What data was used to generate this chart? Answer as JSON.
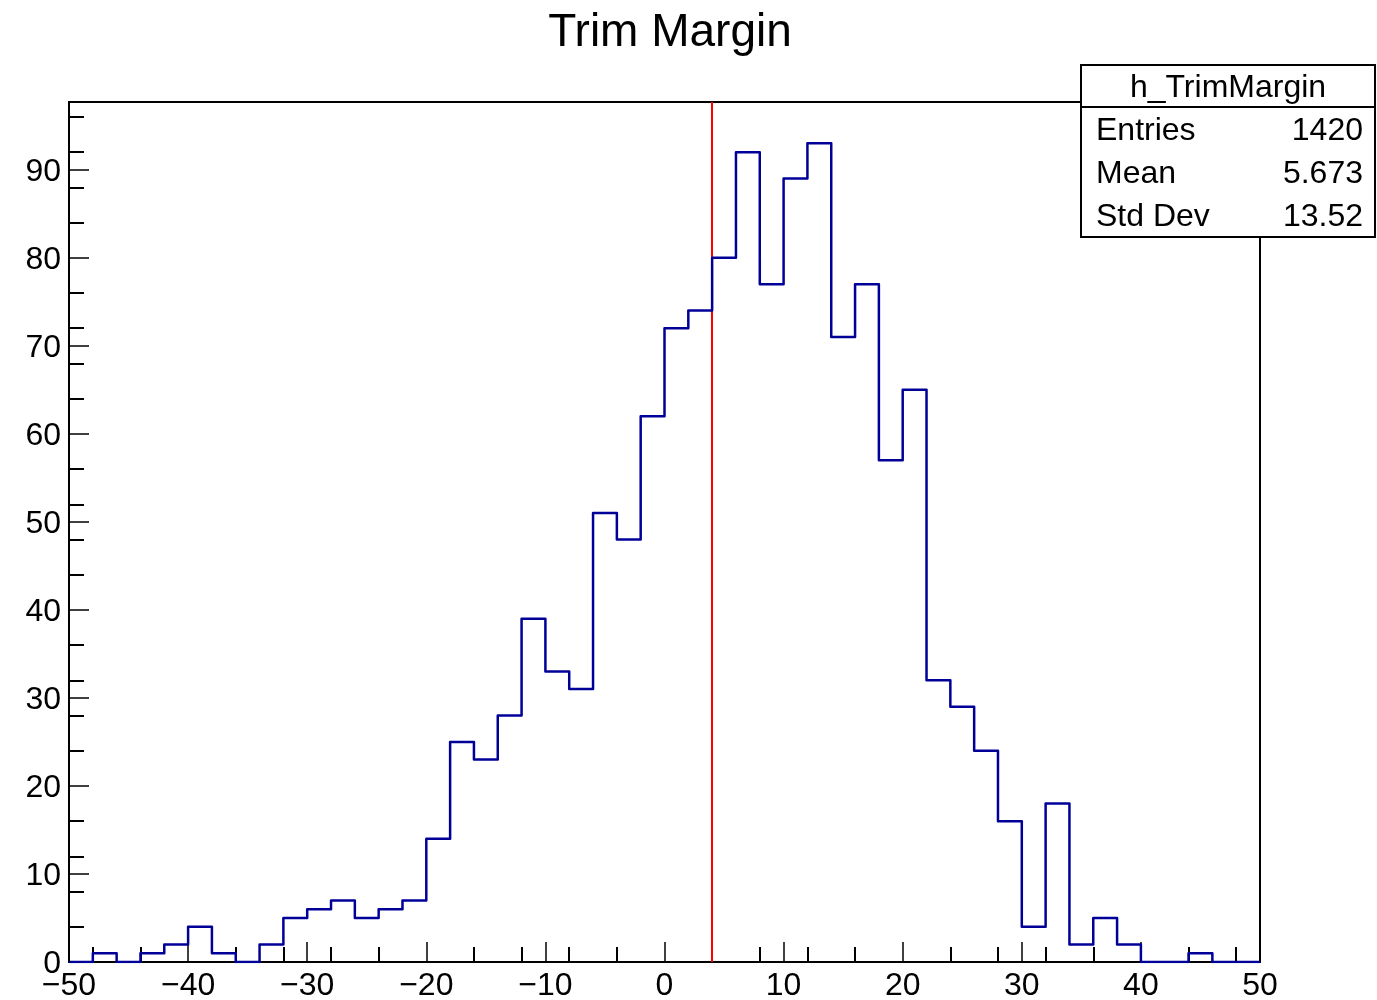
{
  "chart_data": {
    "type": "histogram",
    "title": "Trim Margin",
    "bins": [
      -50,
      -48,
      -46,
      -44,
      -42,
      -40,
      -38,
      -36,
      -34,
      -32,
      -30,
      -28,
      -26,
      -24,
      -22,
      -20,
      -18,
      -16,
      -14,
      -12,
      -10,
      -8,
      -6,
      -4,
      -2,
      0,
      2,
      4,
      6,
      8,
      10,
      12,
      14,
      16,
      18,
      20,
      22,
      24,
      26,
      28,
      30,
      32,
      34,
      36,
      38,
      40,
      42,
      44,
      46,
      48,
      50
    ],
    "values": [
      0,
      1,
      0,
      1,
      2,
      4,
      1,
      0,
      2,
      5,
      6,
      7,
      5,
      6,
      7,
      14,
      25,
      23,
      28,
      39,
      33,
      31,
      51,
      48,
      62,
      72,
      74,
      80,
      92,
      77,
      89,
      93,
      71,
      77,
      57,
      65,
      32,
      29,
      24,
      16,
      4,
      18,
      2,
      5,
      2,
      0,
      0,
      1,
      0,
      0
    ],
    "color": "#000099",
    "xlim": [
      -50,
      50
    ],
    "xticks": [
      -50,
      -40,
      -30,
      -20,
      -10,
      0,
      10,
      20,
      30,
      40,
      50
    ],
    "ylim": [
      0,
      97.7
    ],
    "yticks": [
      0,
      10,
      20,
      30,
      40,
      50,
      60,
      70,
      80,
      90
    ],
    "ref_lines": [
      {
        "axis": "x",
        "value": 4,
        "color": "#ff0000"
      }
    ],
    "annotations": [
      "h_TrimMargin",
      "Entries",
      "1420",
      "Mean",
      "5.673",
      "Std Dev",
      "13.52"
    ],
    "grid": false
  }
}
